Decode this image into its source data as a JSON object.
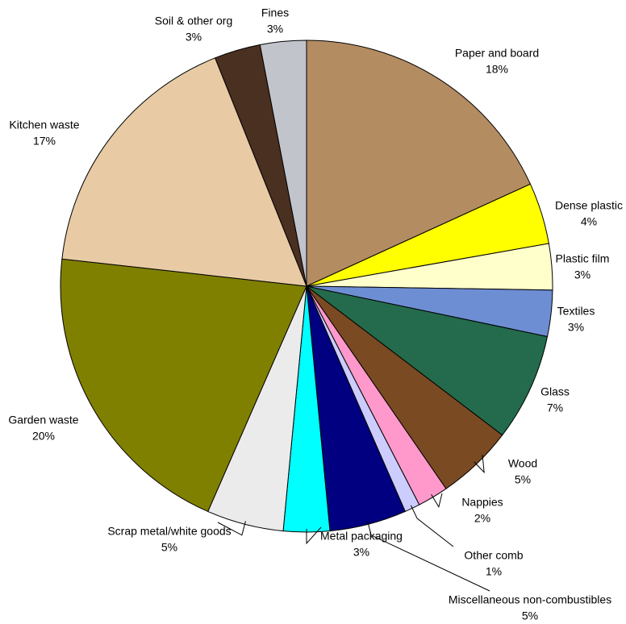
{
  "chart_data": {
    "type": "pie",
    "categories": [
      "Paper and board",
      "Dense plastic",
      "Plastic film",
      "Textiles",
      "Glass",
      "Wood",
      "Nappies",
      "Other comb",
      "Miscellaneous non-combustibles",
      "Metal packaging",
      "Scrap metal/white goods",
      "Garden waste",
      "Kitchen waste",
      "Soil & other org",
      "Fines"
    ],
    "values": [
      18,
      4,
      3,
      3,
      7,
      5,
      2,
      1,
      5,
      3,
      5,
      20,
      17,
      3,
      3
    ],
    "value_labels": [
      "18%",
      "4%",
      "3%",
      "3%",
      "7%",
      "5%",
      "2%",
      "1%",
      "5%",
      "3%",
      "5%",
      "20%",
      "17%",
      "3%",
      "3%"
    ],
    "colors": [
      "#b48c62",
      "#ffff00",
      "#ffffcc",
      "#6e8ed4",
      "#236b4c",
      "#7a4a22",
      "#ff99cc",
      "#ccccff",
      "#000080",
      "#00ffff",
      "#ebebeb",
      "#808000",
      "#e8cba4",
      "#4a3020",
      "#c2c4cc"
    ]
  }
}
